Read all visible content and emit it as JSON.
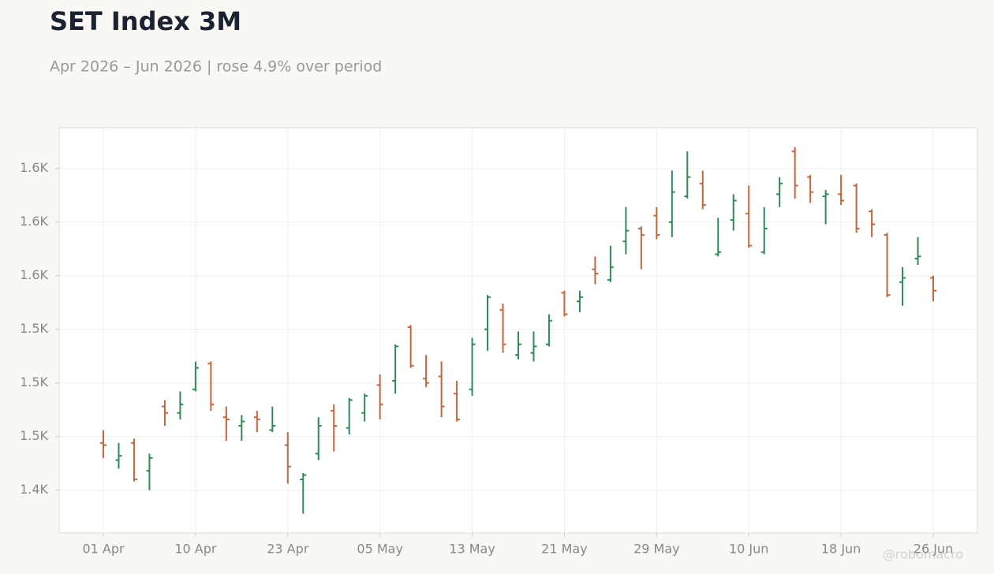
{
  "chart_data": {
    "type": "ohlc",
    "title": "SET Index 3M",
    "subtitle": "Apr 2026 – Jun 2026 | rose 4.9% over period",
    "watermark": "@robomacro",
    "grid": true,
    "up_color": "#2e8b57",
    "down_color": "#c8643c",
    "ylim": [
      1430,
      1619
    ],
    "yticks": [
      {
        "value": 1450,
        "label": "1.4K"
      },
      {
        "value": 1475,
        "label": "1.5K"
      },
      {
        "value": 1500,
        "label": "1.5K"
      },
      {
        "value": 1525,
        "label": "1.5K"
      },
      {
        "value": 1550,
        "label": "1.6K"
      },
      {
        "value": 1575,
        "label": "1.6K"
      },
      {
        "value": 1600,
        "label": "1.6K"
      }
    ],
    "categories": [
      "01 Apr",
      null,
      null,
      null,
      null,
      null,
      "10 Apr",
      null,
      null,
      null,
      null,
      null,
      "23 Apr",
      null,
      null,
      null,
      null,
      null,
      "05 May",
      null,
      null,
      null,
      null,
      null,
      "13 May",
      null,
      null,
      null,
      null,
      null,
      "21 May",
      null,
      null,
      null,
      null,
      null,
      "29 May",
      null,
      null,
      null,
      null,
      null,
      "10 Jun",
      null,
      null,
      null,
      null,
      null,
      "18 Jun",
      null,
      null,
      null,
      null,
      null,
      "26 Jun"
    ],
    "open": [
      1472,
      1464,
      1472,
      1459,
      1489,
      1486,
      1497,
      1509,
      1484,
      1480,
      1484,
      1478,
      1471,
      1455,
      1467,
      1487,
      1479,
      1486,
      1499,
      1501,
      1526,
      1502,
      1503,
      1495,
      1497,
      1525,
      1534,
      1513,
      1514,
      1518,
      1542,
      1538,
      1553,
      1548,
      1566,
      1572,
      1578,
      1575,
      1587,
      1593,
      1560,
      1576,
      1579,
      1561,
      1588,
      1608,
      1596,
      1587,
      1588,
      1592,
      1580,
      1569,
      1547,
      1558,
      1549
    ],
    "high": [
      1478,
      1472,
      1474,
      1467,
      1492,
      1496,
      1510,
      1510,
      1489,
      1485,
      1487,
      1489,
      1477,
      1458,
      1484,
      1490,
      1493,
      1495,
      1504,
      1518,
      1527,
      1513,
      1510,
      1501,
      1521,
      1541,
      1537,
      1524,
      1524,
      1532,
      1543,
      1543,
      1559,
      1564,
      1582,
      1573,
      1582,
      1599,
      1608,
      1599,
      1577,
      1588,
      1592,
      1582,
      1596,
      1610,
      1597,
      1590,
      1597,
      1593,
      1581,
      1570,
      1554,
      1568,
      1550
    ],
    "low": [
      1465,
      1460,
      1454,
      1450,
      1480,
      1483,
      1496,
      1487,
      1473,
      1473,
      1477,
      1477,
      1453,
      1439,
      1464,
      1468,
      1476,
      1482,
      1483,
      1495,
      1507,
      1498,
      1484,
      1482,
      1494,
      1515,
      1514,
      1511,
      1510,
      1517,
      1531,
      1533,
      1546,
      1547,
      1560,
      1553,
      1567,
      1568,
      1586,
      1581,
      1559,
      1571,
      1563,
      1560,
      1582,
      1586,
      1584,
      1574,
      1583,
      1570,
      1568,
      1540,
      1536,
      1555,
      1538
    ],
    "close": [
      1471,
      1466,
      1455,
      1465,
      1486,
      1490,
      1507,
      1490,
      1483,
      1482,
      1483,
      1480,
      1461,
      1457,
      1480,
      1480,
      1492,
      1494,
      1490,
      1517,
      1508,
      1500,
      1489,
      1483,
      1518,
      1540,
      1518,
      1518,
      1517,
      1529,
      1532,
      1540,
      1551,
      1554,
      1571,
      1569,
      1569,
      1589,
      1596,
      1583,
      1561,
      1585,
      1564,
      1572,
      1593,
      1592,
      1589,
      1588,
      1585,
      1572,
      1574,
      1541,
      1549,
      1559,
      1543
    ]
  }
}
